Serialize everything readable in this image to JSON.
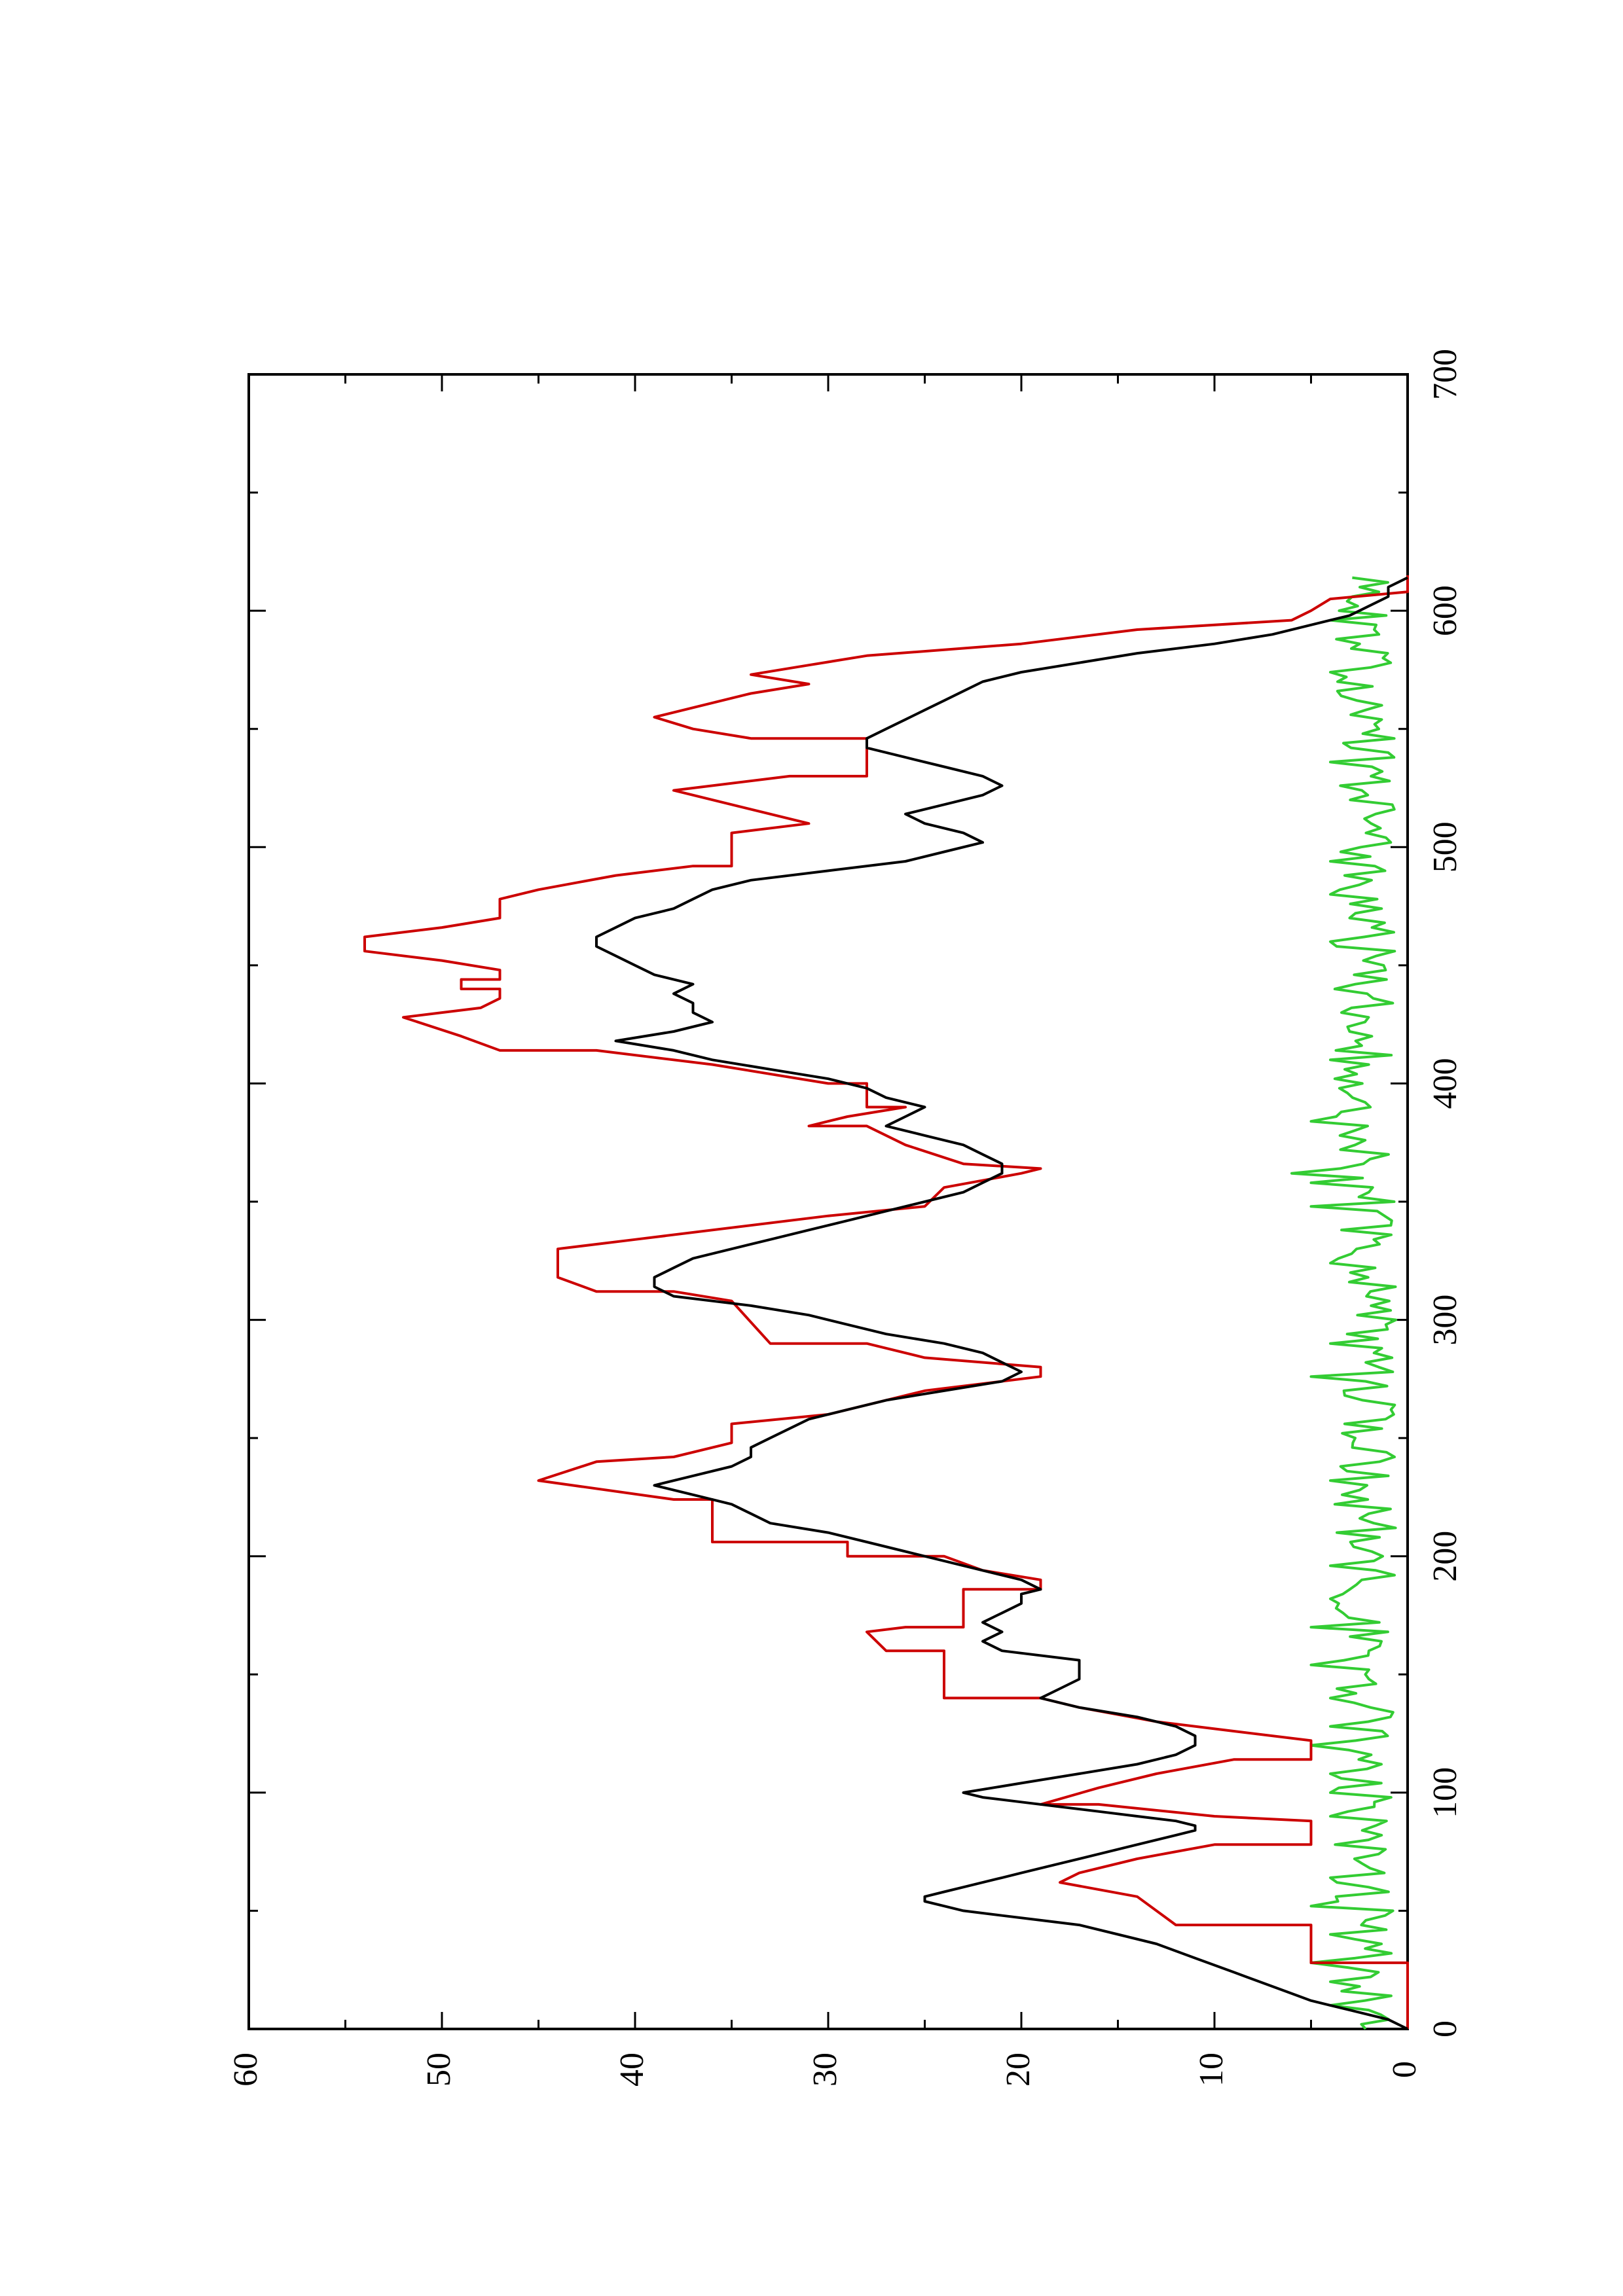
{
  "chart_data": {
    "type": "line",
    "orientation": "rotated-90-ccw",
    "title": "",
    "xlabel": "",
    "ylabel": "",
    "xlim": [
      0,
      700
    ],
    "ylim": [
      0,
      60
    ],
    "x_ticks": [
      0,
      100,
      200,
      300,
      400,
      500,
      600,
      700
    ],
    "y_ticks": [
      0,
      10,
      20,
      30,
      40,
      50,
      60
    ],
    "grid": false,
    "legend": "none",
    "series": [
      {
        "color": "#cc0000",
        "style": "step",
        "points": [
          [
            0,
            0
          ],
          [
            28,
            0
          ],
          [
            28,
            5
          ],
          [
            44,
            5
          ],
          [
            44,
            12
          ],
          [
            56,
            14
          ],
          [
            62,
            18
          ],
          [
            66,
            17
          ],
          [
            72,
            14
          ],
          [
            78,
            10
          ],
          [
            78,
            5
          ],
          [
            88,
            5
          ],
          [
            90,
            10
          ],
          [
            95,
            16
          ],
          [
            95,
            19
          ],
          [
            102,
            16
          ],
          [
            108,
            13
          ],
          [
            114,
            9
          ],
          [
            114,
            5
          ],
          [
            122,
            5
          ],
          [
            126,
            9
          ],
          [
            130,
            13
          ],
          [
            136,
            17
          ],
          [
            140,
            19
          ],
          [
            140,
            24
          ],
          [
            160,
            24
          ],
          [
            160,
            27
          ],
          [
            168,
            28
          ],
          [
            170,
            26
          ],
          [
            170,
            23
          ],
          [
            186,
            23
          ],
          [
            186,
            19
          ],
          [
            190,
            19
          ],
          [
            194,
            22
          ],
          [
            200,
            24
          ],
          [
            200,
            29
          ],
          [
            206,
            29
          ],
          [
            206,
            36
          ],
          [
            224,
            36
          ],
          [
            224,
            38
          ],
          [
            232,
            45
          ],
          [
            240,
            42
          ],
          [
            242,
            38
          ],
          [
            248,
            35
          ],
          [
            256,
            35
          ],
          [
            260,
            30
          ],
          [
            270,
            25
          ],
          [
            276,
            19
          ],
          [
            280,
            19
          ],
          [
            284,
            25
          ],
          [
            290,
            28
          ],
          [
            290,
            33
          ],
          [
            308,
            35
          ],
          [
            312,
            38
          ],
          [
            312,
            42
          ],
          [
            318,
            44
          ],
          [
            330,
            44
          ],
          [
            334,
            40
          ],
          [
            344,
            30
          ],
          [
            348,
            25
          ],
          [
            356,
            24
          ],
          [
            362,
            20
          ],
          [
            364,
            19
          ],
          [
            366,
            23
          ],
          [
            374,
            26
          ],
          [
            382,
            28
          ],
          [
            382,
            31
          ],
          [
            386,
            29
          ],
          [
            390,
            26
          ],
          [
            390,
            28
          ],
          [
            400,
            28
          ],
          [
            400,
            30
          ],
          [
            408,
            36
          ],
          [
            414,
            42
          ],
          [
            414,
            47
          ],
          [
            420,
            49
          ],
          [
            428,
            52
          ],
          [
            432,
            48
          ],
          [
            436,
            47
          ],
          [
            440,
            47
          ],
          [
            440,
            49
          ],
          [
            444,
            49
          ],
          [
            444,
            47
          ],
          [
            448,
            47
          ],
          [
            452,
            50
          ],
          [
            456,
            54
          ],
          [
            462,
            54
          ],
          [
            466,
            50
          ],
          [
            470,
            47
          ],
          [
            478,
            47
          ],
          [
            482,
            45
          ],
          [
            488,
            41
          ],
          [
            492,
            37
          ],
          [
            492,
            35
          ],
          [
            506,
            35
          ],
          [
            510,
            31
          ],
          [
            518,
            35
          ],
          [
            524,
            38
          ],
          [
            530,
            32
          ],
          [
            530,
            28
          ],
          [
            546,
            28
          ],
          [
            546,
            34
          ],
          [
            550,
            37
          ],
          [
            555,
            39
          ],
          [
            565,
            34
          ],
          [
            569,
            31
          ],
          [
            573,
            34
          ],
          [
            577,
            31
          ],
          [
            581,
            28
          ],
          [
            586,
            20
          ],
          [
            592,
            14
          ],
          [
            596,
            6
          ],
          [
            600,
            5
          ],
          [
            605,
            4
          ],
          [
            608,
            0
          ],
          [
            615,
            0
          ]
        ]
      },
      {
        "color": "#000000",
        "style": "line",
        "points": [
          [
            0,
            0
          ],
          [
            4,
            1
          ],
          [
            8,
            3
          ],
          [
            12,
            5
          ],
          [
            18,
            7
          ],
          [
            24,
            9
          ],
          [
            30,
            11
          ],
          [
            36,
            13
          ],
          [
            40,
            15
          ],
          [
            44,
            17
          ],
          [
            46,
            19
          ],
          [
            48,
            21
          ],
          [
            50,
            23
          ],
          [
            52,
            24
          ],
          [
            54,
            25
          ],
          [
            56,
            25
          ],
          [
            58,
            24
          ],
          [
            60,
            23
          ],
          [
            62,
            22
          ],
          [
            64,
            21
          ],
          [
            66,
            20
          ],
          [
            70,
            18
          ],
          [
            74,
            16
          ],
          [
            78,
            14
          ],
          [
            82,
            12
          ],
          [
            84,
            11
          ],
          [
            86,
            11
          ],
          [
            88,
            12
          ],
          [
            90,
            14
          ],
          [
            92,
            16
          ],
          [
            94,
            18
          ],
          [
            96,
            20
          ],
          [
            98,
            22
          ],
          [
            100,
            23
          ],
          [
            104,
            20
          ],
          [
            108,
            17
          ],
          [
            112,
            14
          ],
          [
            116,
            12
          ],
          [
            120,
            11
          ],
          [
            124,
            11
          ],
          [
            128,
            12
          ],
          [
            132,
            14
          ],
          [
            136,
            17
          ],
          [
            140,
            19
          ],
          [
            144,
            18
          ],
          [
            148,
            17
          ],
          [
            152,
            17
          ],
          [
            156,
            17
          ],
          [
            160,
            21
          ],
          [
            164,
            22
          ],
          [
            168,
            21
          ],
          [
            172,
            22
          ],
          [
            176,
            21
          ],
          [
            180,
            20
          ],
          [
            184,
            20
          ],
          [
            186,
            19
          ],
          [
            190,
            20
          ],
          [
            194,
            22
          ],
          [
            198,
            24
          ],
          [
            202,
            26
          ],
          [
            206,
            28
          ],
          [
            210,
            30
          ],
          [
            214,
            33
          ],
          [
            218,
            34
          ],
          [
            222,
            35
          ],
          [
            226,
            37
          ],
          [
            230,
            39
          ],
          [
            234,
            37
          ],
          [
            238,
            35
          ],
          [
            242,
            34
          ],
          [
            246,
            34
          ],
          [
            250,
            33
          ],
          [
            254,
            32
          ],
          [
            258,
            31
          ],
          [
            262,
            29
          ],
          [
            266,
            27
          ],
          [
            270,
            24
          ],
          [
            274,
            21
          ],
          [
            278,
            20
          ],
          [
            282,
            21
          ],
          [
            286,
            22
          ],
          [
            290,
            24
          ],
          [
            294,
            27
          ],
          [
            298,
            29
          ],
          [
            302,
            31
          ],
          [
            306,
            34
          ],
          [
            310,
            38
          ],
          [
            314,
            39
          ],
          [
            318,
            39
          ],
          [
            322,
            38
          ],
          [
            326,
            37
          ],
          [
            330,
            35
          ],
          [
            334,
            33
          ],
          [
            338,
            31
          ],
          [
            342,
            29
          ],
          [
            346,
            27
          ],
          [
            350,
            25
          ],
          [
            354,
            23
          ],
          [
            358,
            22
          ],
          [
            362,
            21
          ],
          [
            366,
            21
          ],
          [
            370,
            22
          ],
          [
            374,
            23
          ],
          [
            378,
            25
          ],
          [
            382,
            27
          ],
          [
            386,
            26
          ],
          [
            390,
            25
          ],
          [
            394,
            27
          ],
          [
            398,
            28
          ],
          [
            402,
            30
          ],
          [
            406,
            33
          ],
          [
            410,
            36
          ],
          [
            414,
            38
          ],
          [
            418,
            41
          ],
          [
            422,
            38
          ],
          [
            426,
            36
          ],
          [
            430,
            37
          ],
          [
            434,
            37
          ],
          [
            438,
            38
          ],
          [
            442,
            37
          ],
          [
            446,
            39
          ],
          [
            450,
            40
          ],
          [
            454,
            41
          ],
          [
            458,
            42
          ],
          [
            462,
            42
          ],
          [
            466,
            41
          ],
          [
            470,
            40
          ],
          [
            474,
            38
          ],
          [
            478,
            37
          ],
          [
            482,
            36
          ],
          [
            486,
            34
          ],
          [
            490,
            30
          ],
          [
            494,
            26
          ],
          [
            498,
            24
          ],
          [
            502,
            22
          ],
          [
            506,
            23
          ],
          [
            510,
            25
          ],
          [
            514,
            26
          ],
          [
            518,
            24
          ],
          [
            522,
            22
          ],
          [
            526,
            21
          ],
          [
            530,
            22
          ],
          [
            534,
            24
          ],
          [
            538,
            26
          ],
          [
            542,
            28
          ],
          [
            546,
            28
          ],
          [
            550,
            27
          ],
          [
            554,
            26
          ],
          [
            558,
            25
          ],
          [
            562,
            24
          ],
          [
            566,
            23
          ],
          [
            570,
            22
          ],
          [
            574,
            20
          ],
          [
            578,
            17
          ],
          [
            582,
            14
          ],
          [
            586,
            10
          ],
          [
            590,
            7
          ],
          [
            594,
            5
          ],
          [
            598,
            3
          ],
          [
            602,
            2
          ],
          [
            606,
            1
          ],
          [
            610,
            1
          ],
          [
            614,
            0
          ]
        ]
      },
      {
        "color": "#33cc33",
        "style": "line",
        "noise_mean": 2.2,
        "noise_amplitude": 1.6,
        "noise_spikes": [
          [
            10,
            4
          ],
          [
            20,
            4
          ],
          [
            28,
            5
          ],
          [
            40,
            4
          ],
          [
            52,
            5
          ],
          [
            64,
            4
          ],
          [
            90,
            4
          ],
          [
            100,
            4
          ],
          [
            108,
            4
          ],
          [
            120,
            5
          ],
          [
            128,
            4
          ],
          [
            140,
            4
          ],
          [
            154,
            5
          ],
          [
            170,
            5
          ],
          [
            182,
            4
          ],
          [
            196,
            4
          ],
          [
            232,
            4
          ],
          [
            276,
            5
          ],
          [
            290,
            4
          ],
          [
            324,
            4
          ],
          [
            348,
            5
          ],
          [
            358,
            5
          ],
          [
            362,
            6
          ],
          [
            384,
            5
          ],
          [
            410,
            4
          ],
          [
            460,
            4
          ],
          [
            470,
            3
          ],
          [
            480,
            4
          ],
          [
            494,
            4
          ],
          [
            536,
            4
          ],
          [
            574,
            4
          ],
          [
            596,
            4
          ]
        ],
        "x_range": [
          0,
          615
        ]
      }
    ]
  }
}
